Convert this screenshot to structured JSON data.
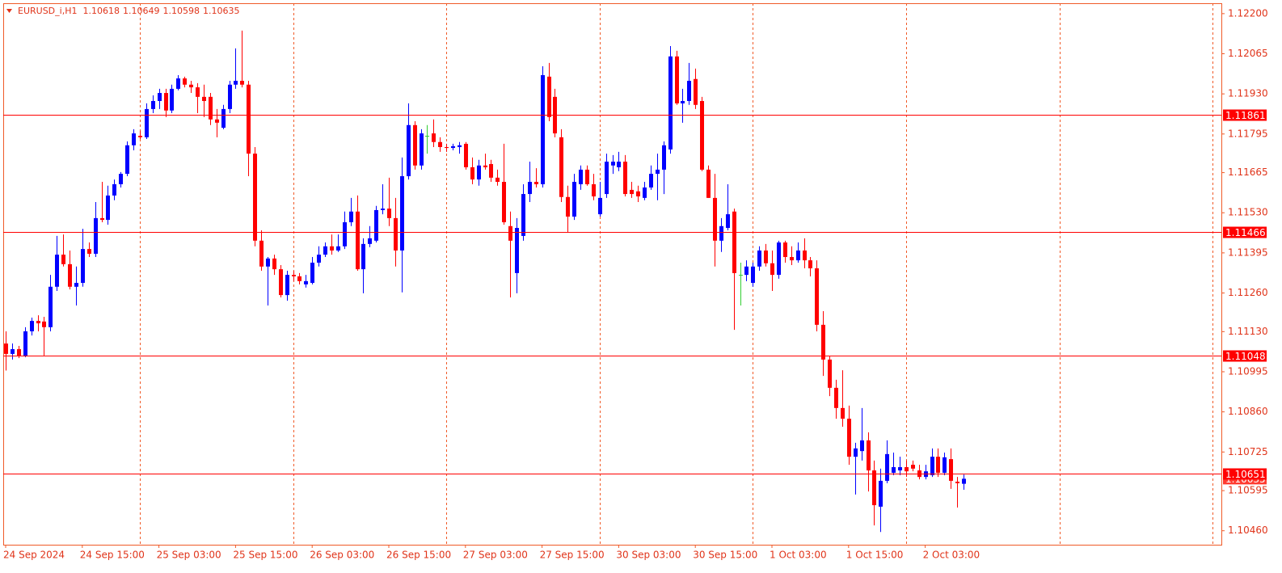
{
  "chart_data": {
    "type": "candlestick",
    "symbol": "EURUSD_i,H1",
    "categories": [
      "24 Sep 2024",
      null,
      null,
      null,
      null,
      null,
      null,
      null,
      null,
      null,
      null,
      null,
      "24 Sep 15:00",
      null,
      null,
      null,
      null,
      null,
      null,
      null,
      null,
      null,
      null,
      null,
      "25 Sep 03:00",
      null,
      null,
      null,
      null,
      null,
      null,
      null,
      null,
      null,
      null,
      null,
      "25 Sep 15:00",
      null,
      null,
      null,
      null,
      null,
      null,
      null,
      null,
      null,
      null,
      null,
      "26 Sep 03:00",
      null,
      null,
      null,
      null,
      null,
      null,
      null,
      null,
      null,
      null,
      null,
      "26 Sep 15:00",
      null,
      null,
      null,
      null,
      null,
      null,
      null,
      null,
      null,
      null,
      null,
      "27 Sep 03:00",
      null,
      null,
      null,
      null,
      null,
      null,
      null,
      null,
      null,
      null,
      null,
      "27 Sep 15:00",
      null,
      null,
      null,
      null,
      null,
      null,
      null,
      null,
      null,
      null,
      null,
      "30 Sep 03:00",
      null,
      null,
      null,
      null,
      null,
      null,
      null,
      null,
      null,
      null,
      null,
      "30 Sep 15:00",
      null,
      null,
      null,
      null,
      null,
      null,
      null,
      null,
      null,
      null,
      null,
      "1 Oct 03:00",
      null,
      null,
      null,
      null,
      null,
      null,
      null,
      null,
      null,
      null,
      null,
      "1 Oct 15:00",
      null,
      null,
      null,
      null,
      null,
      null,
      null,
      null,
      null,
      null,
      null,
      "2 Oct 03:00",
      null,
      null,
      null,
      null,
      null,
      null
    ],
    "open": [
      1.1109,
      1.11055,
      1.11071,
      1.11049,
      1.11131,
      1.11166,
      1.11164,
      1.11145,
      1.11281,
      1.11389,
      1.11357,
      1.11281,
      1.11294,
      1.11408,
      1.11392,
      1.11512,
      1.11506,
      1.11588,
      1.11626,
      1.11661,
      1.11757,
      1.11789,
      1.11784,
      1.11879,
      1.11906,
      1.11933,
      1.11874,
      1.11947,
      1.11982,
      1.11961,
      1.11952,
      1.1192,
      1.1192,
      1.11844,
      1.11816,
      1.11879,
      1.11961,
      1.11974,
      1.11961,
      1.11729,
      1.11436,
      1.11349,
      1.11376,
      1.1134,
      1.11253,
      1.11321,
      1.11316,
      1.11289,
      1.11294,
      1.11362,
      1.11389,
      1.11417,
      1.11403,
      1.11417,
      1.11498,
      1.11534,
      1.1134,
      1.11425,
      1.11436,
      1.11539,
      1.11544,
      1.11512,
      1.11403,
      1.11653,
      1.11825,
      1.11689,
      1.11789,
      1.11797,
      1.11768,
      1.11751,
      1.11748,
      1.11751,
      1.11762,
      1.11683,
      1.11642,
      1.11689,
      1.11694,
      1.11648,
      1.11634,
      1.11485,
      1.11327,
      1.11452,
      1.11593,
      1.11634,
      1.11626,
      1.11988,
      1.1192,
      1.11784,
      1.11583,
      1.11517,
      1.11626,
      1.11675,
      1.11626,
      1.11525,
      1.11593,
      1.11689,
      1.11683,
      1.11702,
      1.11607,
      1.11602,
      1.1158,
      1.11615,
      1.11661,
      1.11675,
      1.11743,
      1.12056,
      1.11898,
      1.11906,
      1.1198,
      1.11906,
      1.11675,
      1.1158,
      1.11436,
      1.11479,
      1.11534,
      1.11321,
      1.11321,
      1.11294,
      1.11349,
      1.11403,
      1.1136,
      1.11321,
      1.1143,
      1.11381,
      1.1137,
      1.11403,
      1.1137,
      1.11343,
      1.11153,
      1.11036,
      1.10941,
      1.10873,
      1.10837,
      1.10709,
      1.10728,
      1.10764,
      1.10663,
      1.10541,
      1.10628,
      1.10655,
      1.10663,
      1.10674,
      1.10682,
      1.10663,
      1.10641,
      1.10647,
      1.10709,
      1.10655,
      1.10701,
      1.10625,
      1.10618
    ],
    "high": [
      1.11131,
      1.1109,
      1.11082,
      1.11145,
      1.11177,
      1.11185,
      1.1118,
      1.11321,
      1.11452,
      1.11457,
      1.11403,
      1.11349,
      1.11476,
      1.1143,
      1.11566,
      1.11634,
      1.11621,
      1.11642,
      1.11667,
      1.1177,
      1.11811,
      1.11806,
      1.11898,
      1.11925,
      1.11947,
      1.11947,
      1.11961,
      1.11993,
      1.11988,
      1.11974,
      1.11966,
      1.11961,
      1.11933,
      1.11879,
      1.11893,
      1.11974,
      1.12083,
      1.12143,
      1.11974,
      1.11751,
      1.11471,
      1.11381,
      1.11389,
      1.11354,
      1.11335,
      1.11335,
      1.11327,
      1.11321,
      1.11381,
      1.11417,
      1.1143,
      1.11457,
      1.11457,
      1.11534,
      1.1158,
      1.11588,
      1.11444,
      1.11485,
      1.11553,
      1.11626,
      1.11648,
      1.1158,
      1.11716,
      1.11898,
      1.11838,
      1.11811,
      1.11825,
      1.11844,
      1.11784,
      1.11762,
      1.11762,
      1.11768,
      1.11768,
      1.11716,
      1.11708,
      1.11729,
      1.11708,
      1.11675,
      1.11762,
      1.11534,
      1.11512,
      1.11626,
      1.11702,
      1.1168,
      1.12023,
      1.12034,
      1.11947,
      1.11811,
      1.11621,
      1.11661,
      1.11689,
      1.11689,
      1.11661,
      1.11634,
      1.11729,
      1.11724,
      1.11735,
      1.11724,
      1.11634,
      1.11621,
      1.11634,
      1.11689,
      1.11729,
      1.1177,
      1.12091,
      1.12075,
      1.11947,
      1.12034,
      1.12015,
      1.1192,
      1.11689,
      1.11661,
      1.11512,
      1.11626,
      1.11544,
      1.11362,
      1.1137,
      1.11362,
      1.11417,
      1.11425,
      1.11403,
      1.11436,
      1.11436,
      1.11417,
      1.1143,
      1.11444,
      1.11381,
      1.1137,
      1.11199,
      1.11049,
      1.10968,
      1.11,
      1.10881,
      1.10756,
      1.10873,
      1.10791,
      1.10696,
      1.10669,
      1.10764,
      1.10723,
      1.10709,
      1.10696,
      1.10696,
      1.10682,
      1.10682,
      1.10737,
      1.10737,
      1.10723,
      1.10737,
      1.10641,
      1.10649
    ],
    "low": [
      1.10999,
      1.11036,
      1.11041,
      1.11044,
      1.11117,
      1.11131,
      1.11049,
      1.11131,
      1.11267,
      1.11349,
      1.11272,
      1.11218,
      1.11281,
      1.11381,
      1.11381,
      1.11498,
      1.1149,
      1.11572,
      1.11615,
      1.11653,
      1.1174,
      1.11778,
      1.11778,
      1.11865,
      1.11879,
      1.11852,
      1.11865,
      1.11942,
      1.11952,
      1.11933,
      1.11865,
      1.11852,
      1.11825,
      1.11784,
      1.11811,
      1.11865,
      1.11947,
      1.11952,
      1.11653,
      1.11417,
      1.11335,
      1.11218,
      1.11321,
      1.11245,
      1.11234,
      1.113,
      1.11289,
      1.11278,
      1.11289,
      1.11349,
      1.11381,
      1.11389,
      1.11398,
      1.11408,
      1.11485,
      1.11335,
      1.11259,
      1.11414,
      1.1143,
      1.11525,
      1.11485,
      1.11349,
      1.11262,
      1.11642,
      1.11675,
      1.11675,
      1.11729,
      1.11751,
      1.11735,
      1.11735,
      1.1174,
      1.11729,
      1.11675,
      1.11626,
      1.11621,
      1.11675,
      1.11634,
      1.11621,
      1.1149,
      1.11245,
      1.11259,
      1.11436,
      1.11566,
      1.11615,
      1.11615,
      1.11838,
      1.11784,
      1.11566,
      1.11463,
      1.11506,
      1.11607,
      1.11621,
      1.11572,
      1.11517,
      1.1158,
      1.11661,
      1.1167,
      1.11585,
      1.1158,
      1.11566,
      1.11572,
      1.11607,
      1.11572,
      1.11593,
      1.11729,
      1.11893,
      1.11833,
      1.11893,
      1.11879,
      1.1167,
      1.1158,
      1.11349,
      1.11398,
      1.11471,
      1.11136,
      1.11218,
      1.113,
      1.11281,
      1.11335,
      1.11349,
      1.11267,
      1.11308,
      1.11362,
      1.11354,
      1.11362,
      1.11343,
      1.11316,
      1.11131,
      1.10981,
      1.10913,
      1.10837,
      1.1081,
      1.10682,
      1.10582,
      1.10696,
      1.10592,
      1.10478,
      1.10456,
      1.1062,
      1.10647,
      1.10647,
      1.10641,
      1.1066,
      1.10633,
      1.10633,
      1.10641,
      1.10641,
      1.10647,
      1.10601,
      1.10538,
      1.10598
    ],
    "close": [
      1.11055,
      1.11071,
      1.11049,
      1.11131,
      1.11166,
      1.11158,
      1.11145,
      1.11281,
      1.11389,
      1.11357,
      1.11281,
      1.11294,
      1.11408,
      1.11392,
      1.11512,
      1.11506,
      1.11588,
      1.11626,
      1.11661,
      1.11757,
      1.11797,
      1.11784,
      1.11879,
      1.11906,
      1.11933,
      1.11874,
      1.11947,
      1.11982,
      1.11961,
      1.11952,
      1.1192,
      1.11906,
      1.11844,
      1.11833,
      1.11879,
      1.11961,
      1.11974,
      1.11961,
      1.11729,
      1.11436,
      1.11349,
      1.11376,
      1.1134,
      1.11253,
      1.11321,
      1.11316,
      1.113,
      1.113,
      1.11362,
      1.11389,
      1.11417,
      1.11403,
      1.11417,
      1.11498,
      1.11534,
      1.1134,
      1.11425,
      1.11444,
      1.11539,
      1.11544,
      1.11512,
      1.11403,
      1.11653,
      1.11825,
      1.11689,
      1.11797,
      1.11789,
      1.11768,
      1.11751,
      1.11748,
      1.11754,
      1.11757,
      1.11683,
      1.11642,
      1.11689,
      1.11683,
      1.11648,
      1.11634,
      1.11498,
      1.11436,
      1.11479,
      1.11593,
      1.11634,
      1.11626,
      1.11993,
      1.11852,
      1.11797,
      1.11583,
      1.11517,
      1.11634,
      1.11675,
      1.11626,
      1.11585,
      1.1158,
      1.11702,
      1.11702,
      1.11702,
      1.11593,
      1.11593,
      1.11585,
      1.11615,
      1.11661,
      1.11675,
      1.11757,
      1.12056,
      1.11898,
      1.11906,
      1.11974,
      1.11893,
      1.11675,
      1.1158,
      1.11436,
      1.11485,
      1.11525,
      1.11327,
      1.11321,
      1.11349,
      1.11349,
      1.11403,
      1.1136,
      1.11321,
      1.1143,
      1.11381,
      1.1137,
      1.11403,
      1.1137,
      1.11343,
      1.11153,
      1.11036,
      1.10941,
      1.10873,
      1.10837,
      1.10709,
      1.10737,
      1.10764,
      1.10663,
      1.10546,
      1.10628,
      1.10718,
      1.10674,
      1.10674,
      1.1066,
      1.10669,
      1.10641,
      1.1066,
      1.10709,
      1.10655,
      1.10707,
      1.10628,
      1.1062,
      1.10635
    ],
    "colors": {
      "bull": "#0000ff",
      "bear": "#ff0000",
      "doji": "#32cd32"
    },
    "ylim": [
      1.10413,
      1.12235
    ],
    "yticks": [
      {
        "value": 1.122,
        "label": "1.12200"
      },
      1.12065,
      {
        "value": 1.1193,
        "label": "1.11930"
      },
      1.11795,
      1.11665,
      {
        "value": 1.1153,
        "label": "1.11530"
      },
      1.11395,
      {
        "value": 1.1126,
        "label": "1.11260"
      },
      {
        "value": 1.1113,
        "label": "1.11130"
      },
      1.10995,
      {
        "value": 1.1086,
        "label": "1.10860"
      },
      1.10725,
      1.10595,
      {
        "value": 1.1046,
        "label": "1.10460"
      }
    ],
    "hlines": [
      1.11861,
      1.11466,
      1.11048,
      1.10651
    ],
    "hline_color": "#ff0000"
  }
}
